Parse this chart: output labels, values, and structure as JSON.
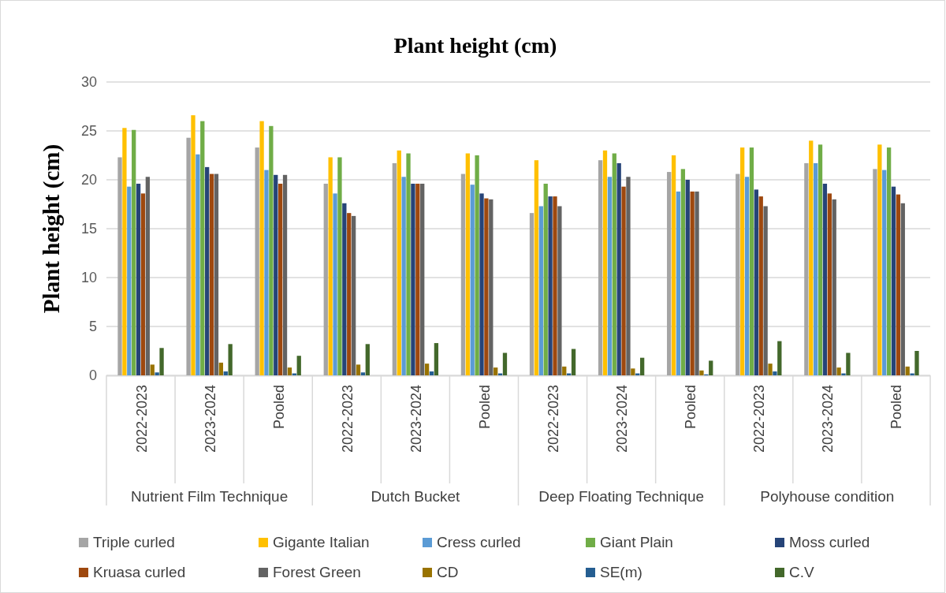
{
  "chart_data": {
    "type": "bar",
    "title": "Plant height (cm)",
    "ylabel": "Plant height (cm)",
    "categories": [
      "2022-2023",
      "2023-2024",
      "Pooled",
      "2022-2023",
      "2023-2024",
      "Pooled",
      "2022-2023",
      "2023-2024",
      "Pooled",
      "2022-2023",
      "2023-2024",
      "Pooled"
    ],
    "annotations": [
      "Nutrient Film Technique",
      "Dutch Bucket",
      "Deep Floating Technique",
      "Polyhouse condition"
    ],
    "series": [
      {
        "name": "Triple curled",
        "color": "#a5a5a5",
        "values": [
          22.3,
          24.3,
          23.3,
          19.6,
          21.7,
          20.6,
          16.6,
          22.0,
          20.8,
          20.6,
          21.7,
          21.1
        ]
      },
      {
        "name": "Gigante Italian",
        "color": "#ffc000",
        "values": [
          25.3,
          26.6,
          26.0,
          22.3,
          23.0,
          22.7,
          22.0,
          23.0,
          22.5,
          23.3,
          24.0,
          23.6
        ]
      },
      {
        "name": "Cress curled",
        "color": "#5b9bd5",
        "values": [
          19.3,
          22.6,
          21.0,
          18.6,
          20.3,
          19.5,
          17.3,
          20.3,
          18.8,
          20.3,
          21.7,
          21.0
        ]
      },
      {
        "name": "Giant Plain",
        "color": "#70ad47",
        "values": [
          25.1,
          26.0,
          25.5,
          22.3,
          22.7,
          22.5,
          19.6,
          22.7,
          21.1,
          23.3,
          23.6,
          23.3
        ]
      },
      {
        "name": "Moss curled",
        "color": "#264478",
        "values": [
          19.6,
          21.3,
          20.5,
          17.6,
          19.6,
          18.6,
          18.3,
          21.7,
          20.0,
          19.0,
          19.6,
          19.3
        ]
      },
      {
        "name": "Kruasa curled",
        "color": "#9e480e",
        "values": [
          18.6,
          20.6,
          19.6,
          16.6,
          19.6,
          18.1,
          18.3,
          19.3,
          18.8,
          18.3,
          18.6,
          18.5
        ]
      },
      {
        "name": "Forest Green",
        "color": "#636363",
        "values": [
          20.3,
          20.6,
          20.5,
          16.3,
          19.6,
          18.0,
          17.3,
          20.3,
          18.8,
          17.3,
          18.0,
          17.6
        ]
      },
      {
        "name": "CD",
        "color": "#997300",
        "values": [
          1.1,
          1.3,
          0.8,
          1.1,
          1.2,
          0.8,
          0.9,
          0.7,
          0.5,
          1.2,
          0.8,
          0.9
        ]
      },
      {
        "name": "SE(m)",
        "color": "#255e91",
        "values": [
          0.3,
          0.4,
          0.2,
          0.3,
          0.4,
          0.2,
          0.2,
          0.2,
          0.1,
          0.4,
          0.2,
          0.2
        ]
      },
      {
        "name": "C.V",
        "color": "#43682b",
        "values": [
          2.8,
          3.2,
          2.0,
          3.2,
          3.3,
          2.3,
          2.7,
          1.8,
          1.5,
          3.5,
          2.3,
          2.5
        ]
      }
    ],
    "ylim": [
      0,
      30
    ],
    "yticks": [
      0,
      5,
      10,
      15,
      20,
      25,
      30
    ],
    "grid": "y",
    "legend": "bottom"
  }
}
